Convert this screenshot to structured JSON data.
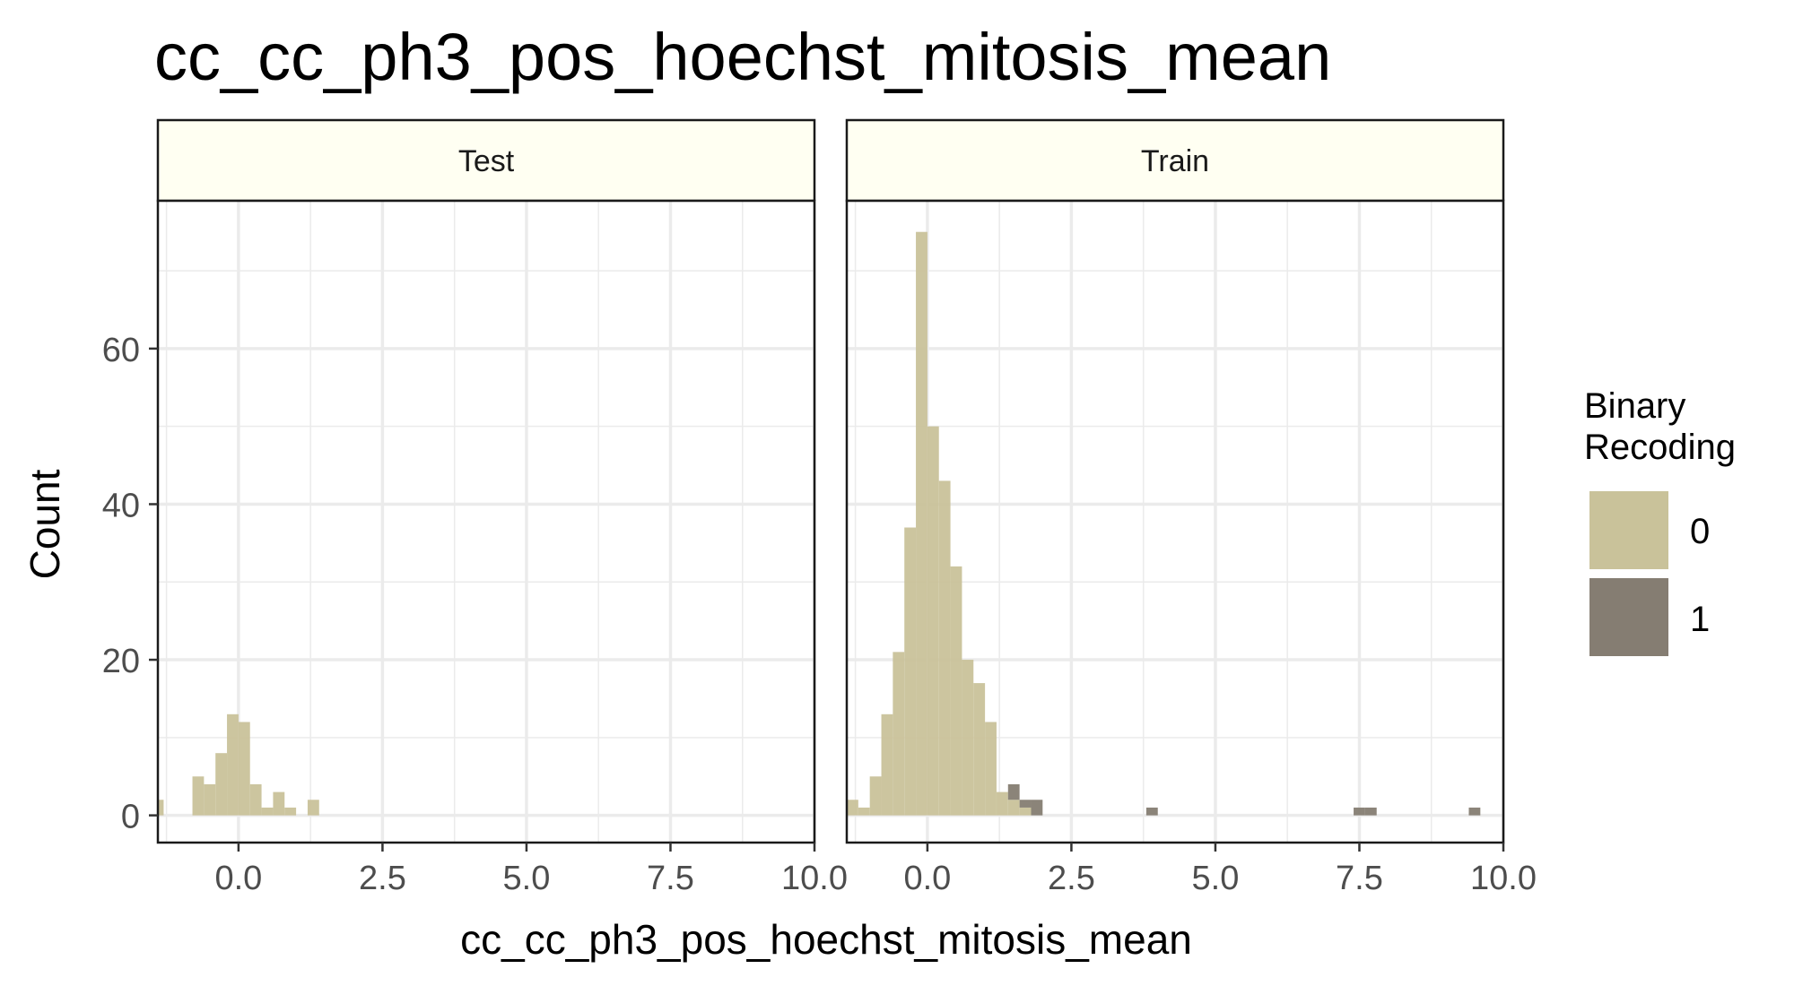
{
  "chart_data": {
    "type": "bar",
    "title": "cc_cc_ph3_pos_hoechst_mitosis_mean",
    "xlabel": "cc_cc_ph3_pos_hoechst_mitosis_mean",
    "ylabel": "Count",
    "xlim": [
      -1.4,
      10.0
    ],
    "ylim": [
      -3.5,
      79
    ],
    "x_ticks": [
      0.0,
      2.5,
      5.0,
      7.5,
      10.0
    ],
    "x_tick_labels": [
      "0.0",
      "2.5",
      "5.0",
      "7.5",
      "10.0"
    ],
    "y_ticks": [
      0,
      20,
      40,
      60
    ],
    "y_tick_labels": [
      "0",
      "20",
      "40",
      "60"
    ],
    "bin_width": 0.2,
    "grid": true,
    "legend": {
      "title_lines": [
        "Binary",
        "Recoding"
      ],
      "position": "right",
      "entries": [
        {
          "label": "0",
          "color": "#c9c29a"
        },
        {
          "label": "1",
          "color": "#857d72"
        }
      ]
    },
    "panel_background": "#ffffff",
    "strip_background": "#fffff2",
    "grid_color": "#ebebeb",
    "panels": [
      {
        "label": "Test",
        "series": [
          {
            "name": "0",
            "color": "#c9c29a",
            "bins": [
              {
                "x0": -1.5,
                "x1": -1.3,
                "count": 2
              },
              {
                "x0": -0.8,
                "x1": -0.6,
                "count": 5
              },
              {
                "x0": -0.6,
                "x1": -0.4,
                "count": 4
              },
              {
                "x0": -0.4,
                "x1": -0.2,
                "count": 8
              },
              {
                "x0": -0.2,
                "x1": 0.0,
                "count": 13
              },
              {
                "x0": 0.0,
                "x1": 0.2,
                "count": 12
              },
              {
                "x0": 0.2,
                "x1": 0.4,
                "count": 4
              },
              {
                "x0": 0.4,
                "x1": 0.6,
                "count": 1
              },
              {
                "x0": 0.6,
                "x1": 0.8,
                "count": 3
              },
              {
                "x0": 0.8,
                "x1": 1.0,
                "count": 1
              },
              {
                "x0": 1.2,
                "x1": 1.4,
                "count": 2
              }
            ]
          },
          {
            "name": "1",
            "color": "#857d72",
            "bins": []
          }
        ]
      },
      {
        "label": "Train",
        "series": [
          {
            "name": "0",
            "color": "#c9c29a",
            "bins": [
              {
                "x0": -1.4,
                "x1": -1.2,
                "count": 2
              },
              {
                "x0": -1.2,
                "x1": -1.0,
                "count": 1
              },
              {
                "x0": -1.0,
                "x1": -0.8,
                "count": 5
              },
              {
                "x0": -0.8,
                "x1": -0.6,
                "count": 13
              },
              {
                "x0": -0.6,
                "x1": -0.4,
                "count": 21
              },
              {
                "x0": -0.4,
                "x1": -0.2,
                "count": 37
              },
              {
                "x0": -0.2,
                "x1": 0.0,
                "count": 75
              },
              {
                "x0": 0.0,
                "x1": 0.2,
                "count": 50
              },
              {
                "x0": 0.2,
                "x1": 0.4,
                "count": 43
              },
              {
                "x0": 0.4,
                "x1": 0.6,
                "count": 32
              },
              {
                "x0": 0.6,
                "x1": 0.8,
                "count": 20
              },
              {
                "x0": 0.8,
                "x1": 1.0,
                "count": 17
              },
              {
                "x0": 1.0,
                "x1": 1.2,
                "count": 12
              },
              {
                "x0": 1.2,
                "x1": 1.4,
                "count": 3
              },
              {
                "x0": 1.4,
                "x1": 1.6,
                "count": 2
              },
              {
                "x0": 1.6,
                "x1": 1.8,
                "count": 1
              }
            ]
          },
          {
            "name": "1",
            "color": "#857d72",
            "bins": [
              {
                "x0": 1.4,
                "x1": 1.6,
                "count": 2
              },
              {
                "x0": 1.6,
                "x1": 1.8,
                "count": 1
              },
              {
                "x0": 1.8,
                "x1": 2.0,
                "count": 2
              },
              {
                "x0": 3.8,
                "x1": 4.0,
                "count": 1
              },
              {
                "x0": 7.4,
                "x1": 7.6,
                "count": 1
              },
              {
                "x0": 7.6,
                "x1": 7.8,
                "count": 1
              },
              {
                "x0": 9.4,
                "x1": 9.6,
                "count": 1
              }
            ]
          }
        ]
      }
    ]
  }
}
